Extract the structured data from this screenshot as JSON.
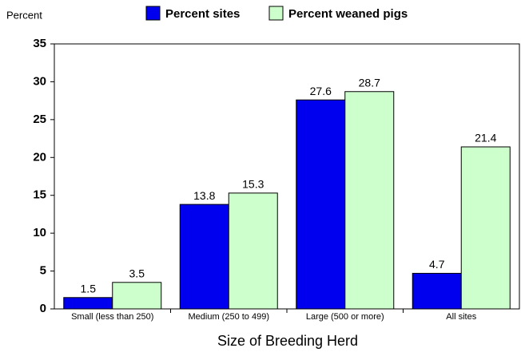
{
  "chart_data": {
    "type": "bar",
    "y_label": "Percent",
    "x_label": "Size of Breeding Herd",
    "categories": [
      "Small (less than 250)",
      "Medium (250 to 499)",
      "Large (500 or more)",
      "All sites"
    ],
    "series": [
      {
        "name": "Percent sites",
        "color": "#0000ee",
        "values": [
          1.5,
          13.8,
          27.6,
          4.7
        ]
      },
      {
        "name": "Percent weaned pigs",
        "color": "#ccffcc",
        "values": [
          3.5,
          15.3,
          28.7,
          21.4
        ]
      }
    ],
    "ylim": [
      0,
      35
    ],
    "yticks": [
      0,
      5,
      10,
      15,
      20,
      25,
      30,
      35
    ],
    "grid": false,
    "legend": "top"
  }
}
